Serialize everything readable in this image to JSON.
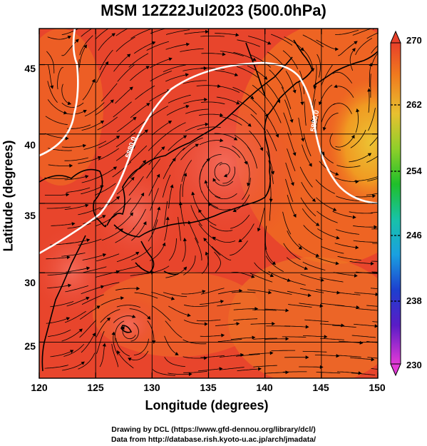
{
  "title": "MSM 12Z22Jul2023 (500.0hPa)",
  "xlabel": "Longitude (degrees)",
  "ylabel": "Latitude  (degrees)",
  "x_ticks": [
    "120",
    "125",
    "130",
    "135",
    "140",
    "145",
    "150"
  ],
  "y_ticks": [
    "25",
    "30",
    "35",
    "40",
    "45"
  ],
  "colorbar_ticks": [
    "270",
    "262",
    "254",
    "246",
    "238",
    "230"
  ],
  "contour_labels": [
    "5880.0",
    "5880.0"
  ],
  "credit_line1": "Drawing by DCL (https://www.gfd-dennou.org/library/dcl/)",
  "credit_line2": "Data from http://database.rish.kyoto-u.ac.jp/arch/jmadata/",
  "colors": {
    "field_warm": "#e8402a",
    "field_hot": "#f06a55",
    "field_orange": "#f07a1e",
    "field_yellow": "#e8c030",
    "contour": "#ffffff",
    "streamline": "#000000"
  },
  "chart_data": {
    "type": "map",
    "lon_range": [
      120,
      150
    ],
    "lat_range": [
      22.4,
      47.6
    ],
    "colorbar": {
      "min": 230,
      "max": 270,
      "labeled": [
        270,
        262,
        254,
        246,
        238,
        230
      ]
    },
    "field": "temperature at 500 hPa with wind streamlines",
    "contour_value": "5880.0",
    "grid": true
  }
}
